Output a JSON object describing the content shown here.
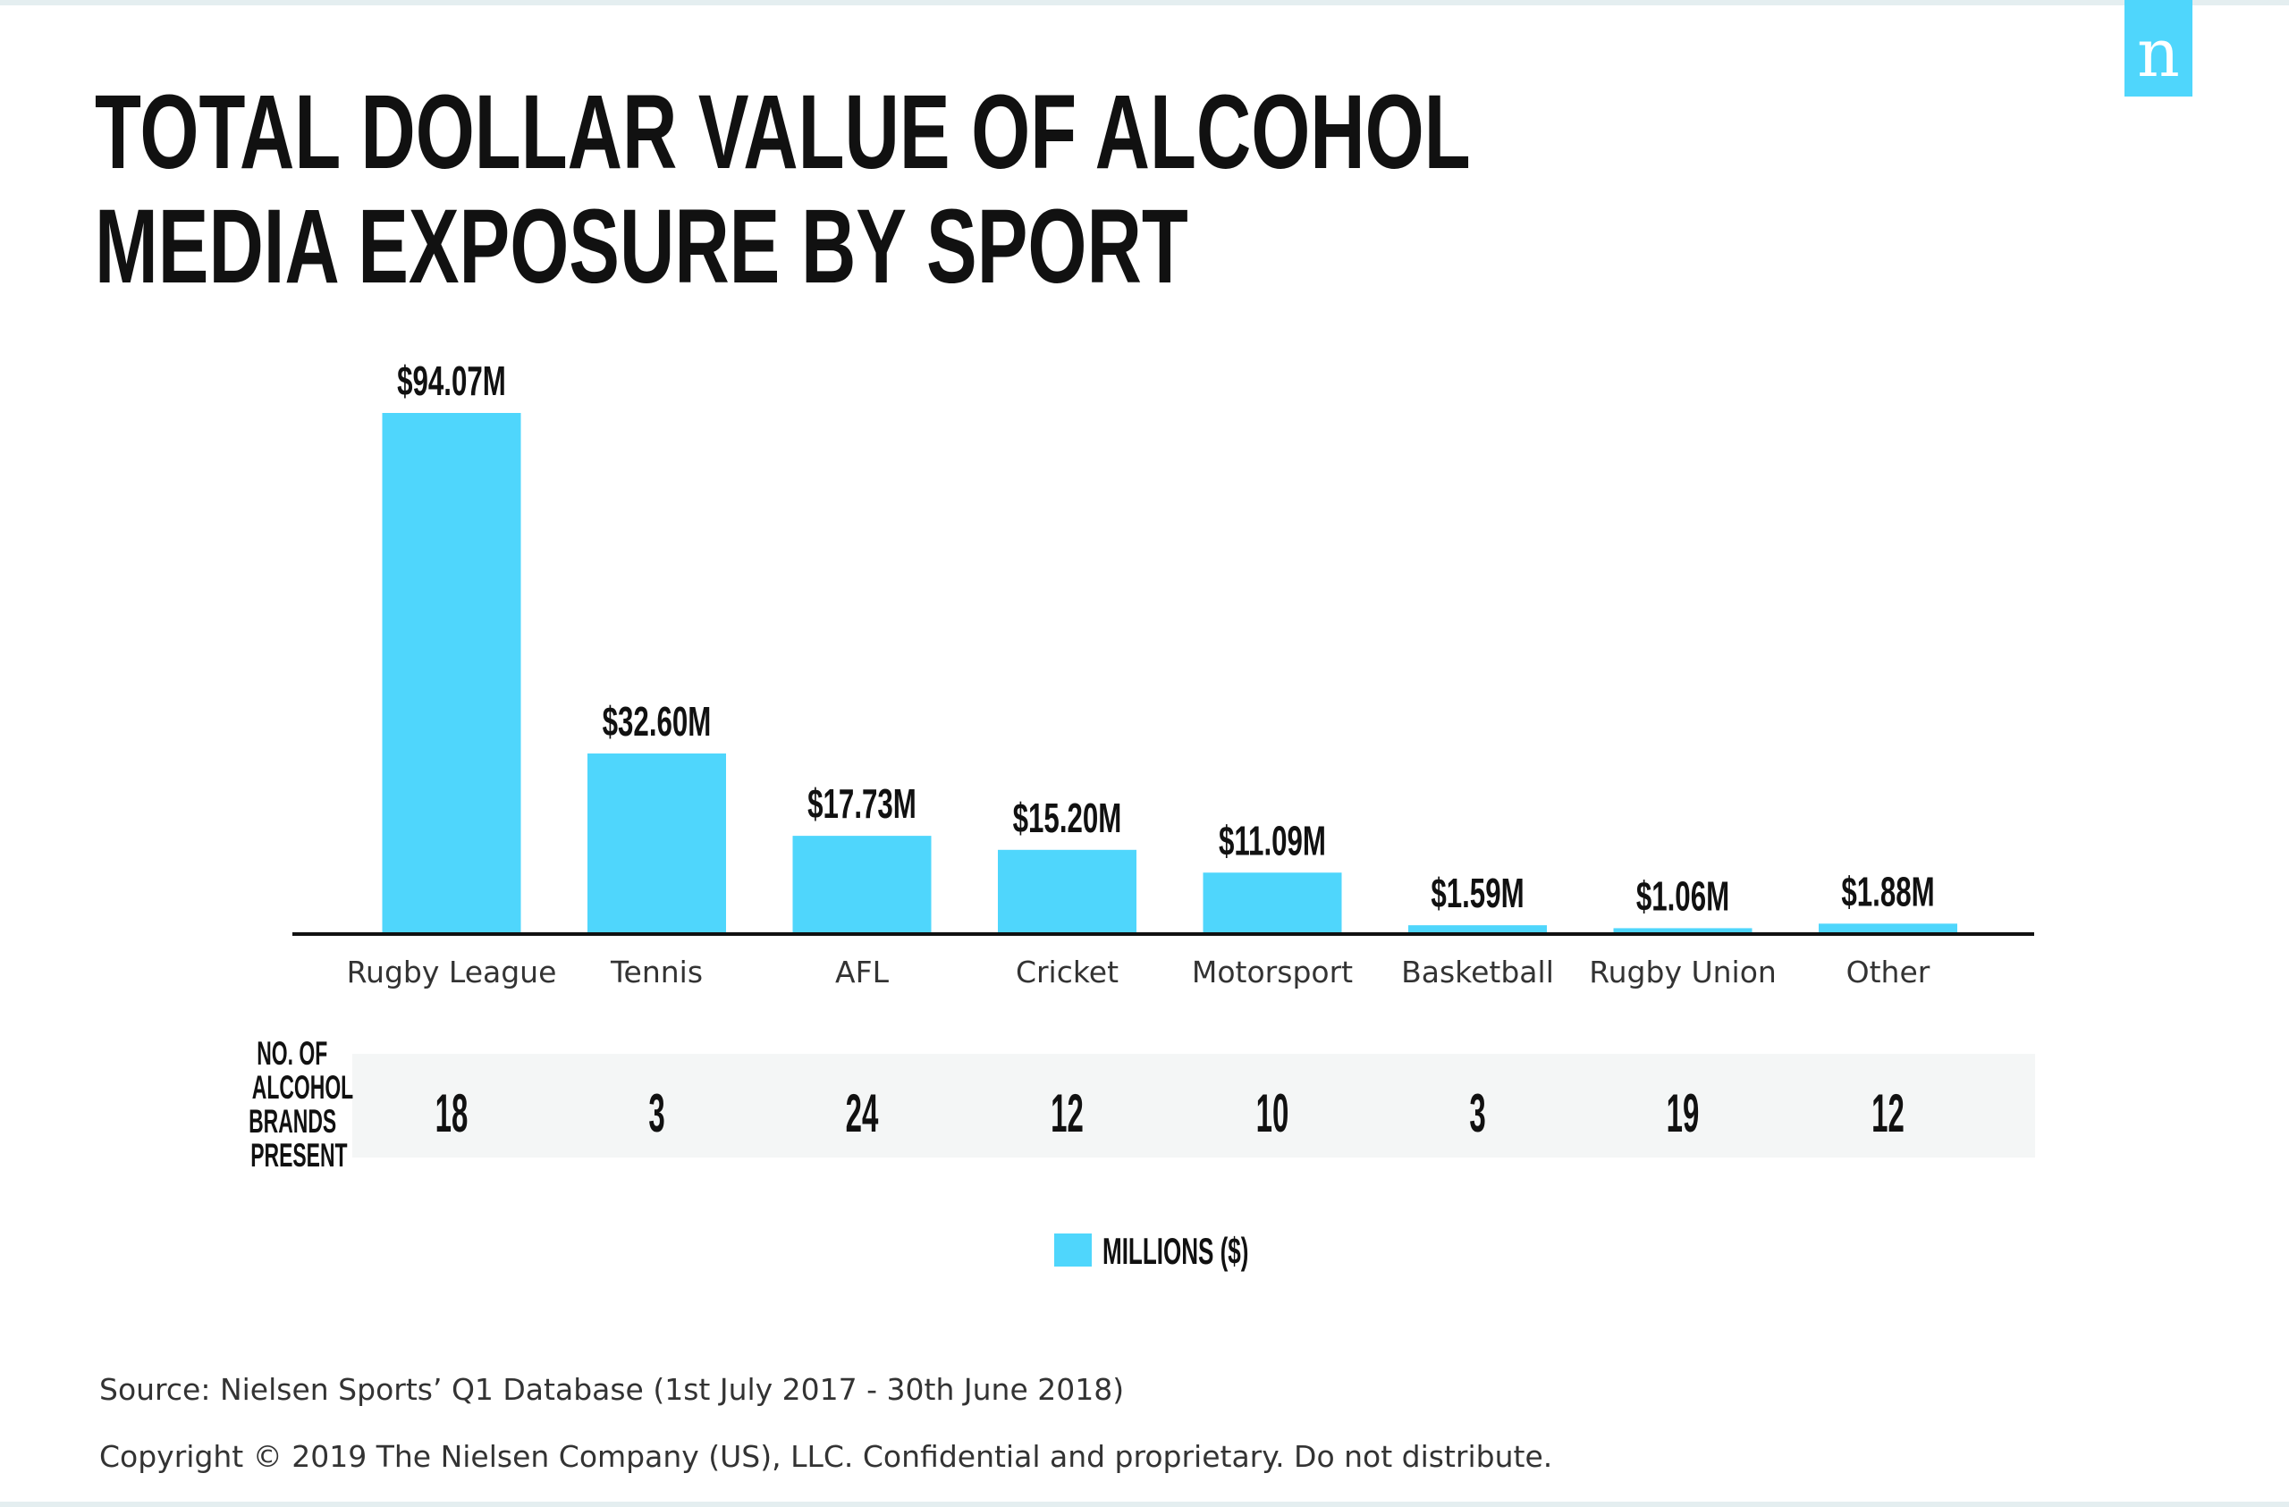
{
  "logo_text": "n",
  "chart_data": {
    "type": "bar",
    "title": "TOTAL DOLLAR VALUE OF ALCOHOL MEDIA EXPOSURE BY SPORT",
    "title_lines": [
      "TOTAL DOLLAR VALUE OF ALCOHOL",
      "MEDIA EXPOSURE BY SPORT"
    ],
    "categories": [
      "Rugby League",
      "Tennis",
      "AFL",
      "Cricket",
      "Motorsport",
      "Basketball",
      "Rugby Union",
      "Other"
    ],
    "values": [
      94.07,
      32.6,
      17.73,
      15.2,
      11.09,
      1.59,
      1.06,
      1.88
    ],
    "data_labels": [
      "$94.07M",
      "$32.60M",
      "$17.73M",
      "$15.20M",
      "$11.09M",
      "$1.59M",
      "$1.06M",
      "$1.88M"
    ],
    "series": [
      {
        "name": "MILLIONS ($)",
        "color": "#4fd6fc"
      }
    ],
    "legend": "bottom-center",
    "grid": false,
    "ylim": [
      0,
      94.07
    ],
    "brands_row": {
      "label_lines": [
        "NO. OF",
        "ALCOHOL",
        "BRANDS",
        "PRESENT"
      ],
      "values": [
        "18",
        "3",
        "24",
        "12",
        "10",
        "3",
        "19",
        "12"
      ]
    }
  },
  "footer": {
    "source": "Source: Nielsen Sports’ Q1 Database (1st July 2017 - 30th June 2018)",
    "copyright": "Copyright © 2019 The Nielsen Company (US), LLC. Confidential and proprietary. Do not distribute."
  }
}
